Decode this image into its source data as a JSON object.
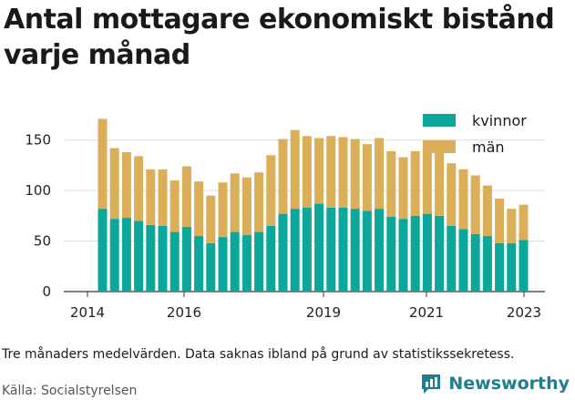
{
  "title": "Antal mottagare ekonomiskt bistånd varje månad",
  "note": "Tre månaders medelvärden. Data saknas ibland på grund av statistikssekretess.",
  "source": "Källa: Socialstyrelsen",
  "brand": {
    "name": "Newsworthy",
    "color": "#1f7f8c"
  },
  "chart_data": {
    "type": "bar",
    "stacked": true,
    "x_ticks": [
      "2014",
      "2016",
      "2019",
      "2021",
      "2023"
    ],
    "ylim": [
      0,
      175
    ],
    "y_ticks": [
      0,
      50,
      100,
      150
    ],
    "grid": true,
    "legend_position": "top-right",
    "series": [
      {
        "name": "kvinnor",
        "color": "#0aa79a",
        "values": [
          82,
          72,
          73,
          70,
          66,
          65,
          59,
          64,
          55,
          48,
          54,
          59,
          56,
          59,
          65,
          77,
          82,
          83,
          87,
          83,
          83,
          82,
          80,
          82,
          74,
          72,
          75,
          77,
          75,
          65,
          62,
          57,
          55,
          48,
          48,
          51
        ]
      },
      {
        "name": "män",
        "color": "#dbae59",
        "values": [
          89,
          70,
          65,
          64,
          55,
          56,
          51,
          60,
          54,
          47,
          54,
          58,
          57,
          59,
          70,
          74,
          78,
          71,
          65,
          71,
          70,
          69,
          66,
          70,
          65,
          61,
          64,
          64,
          64,
          62,
          59,
          58,
          50,
          44,
          34,
          35
        ]
      }
    ]
  }
}
